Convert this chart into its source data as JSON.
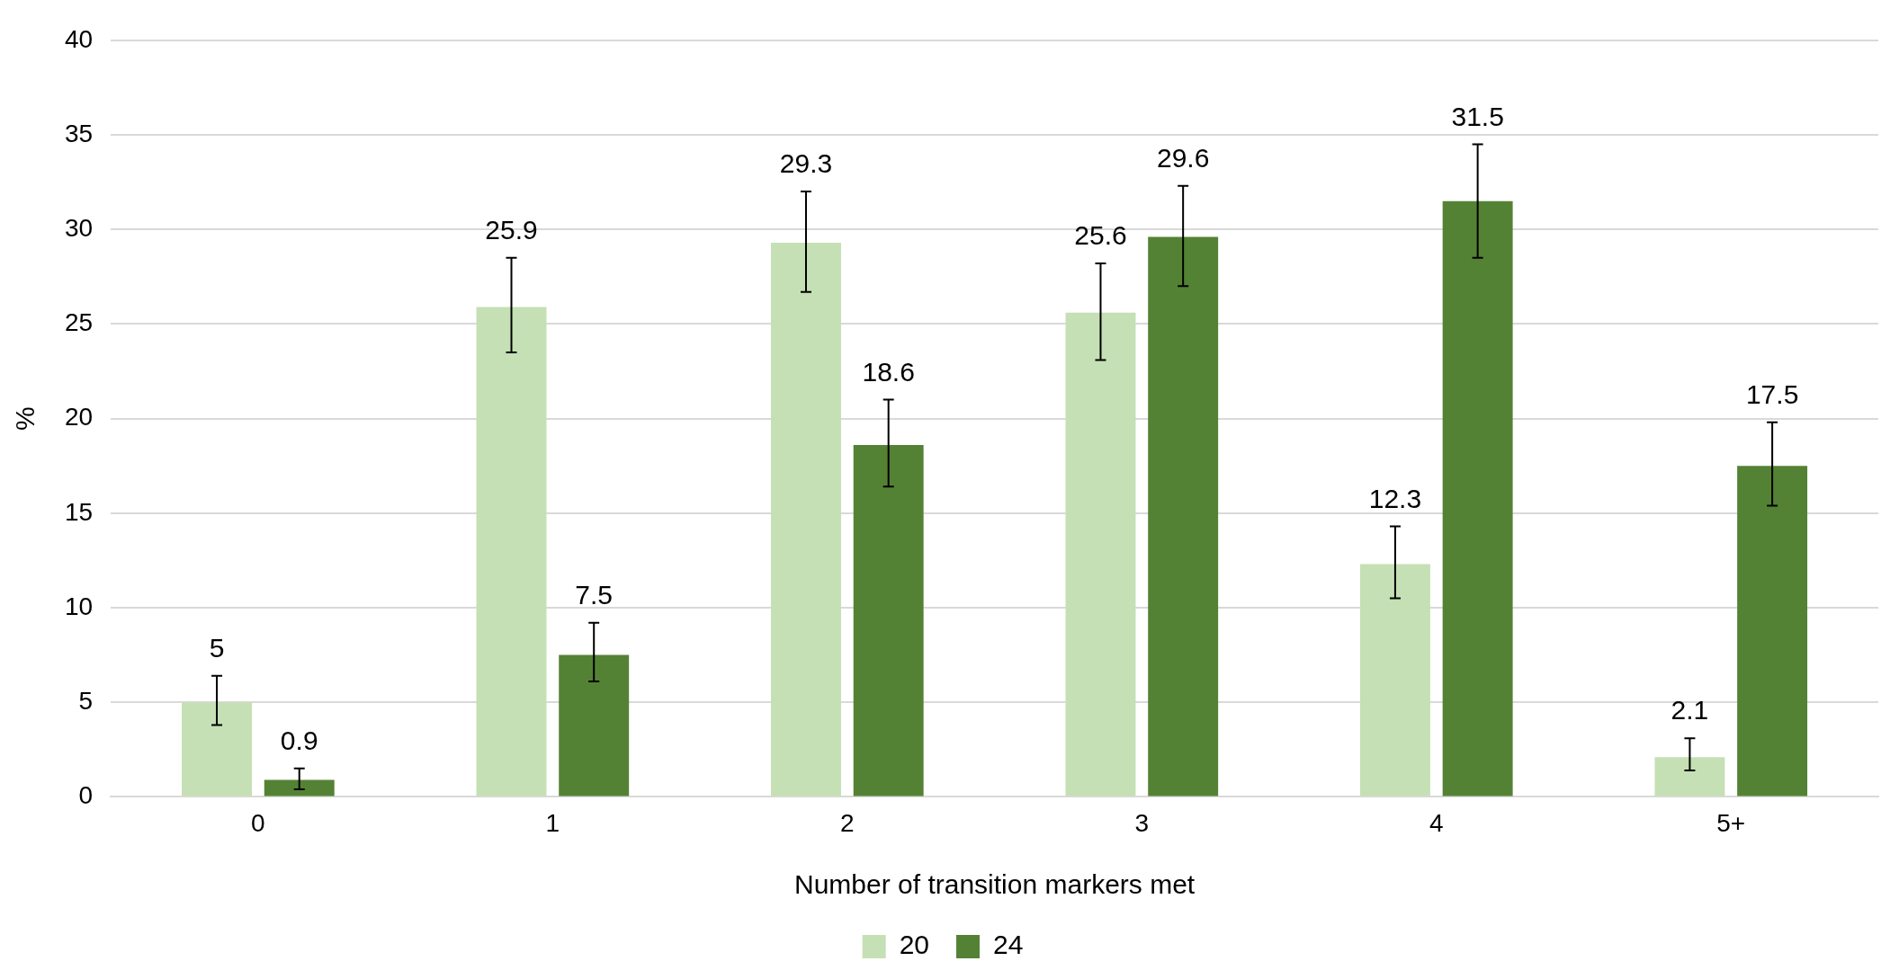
{
  "chart_data": {
    "type": "bar",
    "xlabel": "Number of transition markers met",
    "ylabel": "%",
    "categories": [
      "0",
      "1",
      "2",
      "3",
      "4",
      "5+"
    ],
    "series": [
      {
        "name": "20",
        "color": "#c5e0b4",
        "values": [
          5,
          25.9,
          29.3,
          25.6,
          12.3,
          2.1
        ],
        "errors": [
          [
            3.8,
            6.4
          ],
          [
            23.5,
            28.5
          ],
          [
            26.7,
            32.0
          ],
          [
            23.1,
            28.2
          ],
          [
            10.5,
            14.3
          ],
          [
            1.4,
            3.1
          ]
        ]
      },
      {
        "name": "24",
        "color": "#548235",
        "values": [
          0.9,
          7.5,
          18.6,
          29.6,
          31.5,
          17.5
        ],
        "errors": [
          [
            0.4,
            1.5
          ],
          [
            6.1,
            9.2
          ],
          [
            16.4,
            21.0
          ],
          [
            27.0,
            32.3
          ],
          [
            28.5,
            34.5
          ],
          [
            15.4,
            19.8
          ]
        ]
      }
    ],
    "ylim": [
      0,
      40
    ],
    "yticks": [
      0,
      5,
      10,
      15,
      20,
      25,
      30,
      35,
      40
    ],
    "grid": "y",
    "legend": "bottom",
    "data_labels": true
  }
}
